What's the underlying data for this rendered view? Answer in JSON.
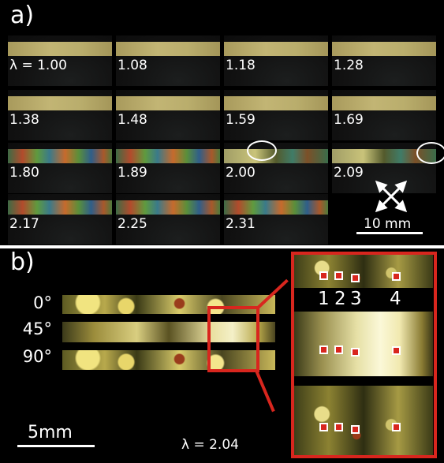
{
  "panel_a": {
    "label": "a)",
    "samples": [
      "λ = 1.00",
      "1.08",
      "1.18",
      "1.28",
      "1.38",
      "1.48",
      "1.59",
      "1.69",
      "1.80",
      "1.89",
      "2.00",
      "2.09",
      "2.17",
      "2.25",
      "2.31"
    ],
    "scale_label": "10 mm"
  },
  "panel_b": {
    "label": "b)",
    "angles": [
      "0°",
      "45°",
      "90°"
    ],
    "positions": [
      "1",
      "2",
      "3",
      "4"
    ],
    "scale_label": "5mm",
    "lambda_label": "λ = 2.04"
  },
  "colors": {
    "background": "#000000",
    "highlight_box": "#d8261e",
    "text": "#ffffff"
  },
  "icons": [
    "crossed-polarizers-icon"
  ]
}
